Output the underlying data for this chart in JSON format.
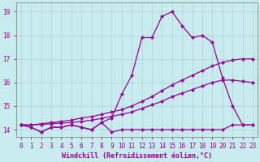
{
  "xlabel": "Windchill (Refroidissement éolien,°C)",
  "bg_color": "#c8eced",
  "line_color": "#990099",
  "grid_color": "#b0d8d8",
  "spine_color": "#888888",
  "xlim": [
    -0.5,
    23.5
  ],
  "ylim": [
    13.7,
    19.4
  ],
  "xticks": [
    0,
    1,
    2,
    3,
    4,
    5,
    6,
    7,
    8,
    9,
    10,
    11,
    12,
    13,
    14,
    15,
    16,
    17,
    18,
    19,
    20,
    21,
    22,
    23
  ],
  "yticks": [
    14,
    15,
    16,
    17,
    18,
    19
  ],
  "curve_flat_x": [
    0,
    1,
    2,
    3,
    4,
    5,
    6,
    7,
    8,
    9,
    10,
    11,
    12,
    13,
    14,
    15,
    16,
    17,
    18,
    19,
    20,
    21,
    22,
    23
  ],
  "curve_flat_y": [
    14.2,
    14.1,
    13.9,
    14.1,
    14.1,
    14.2,
    14.1,
    14.0,
    14.3,
    13.9,
    14.0,
    14.0,
    14.0,
    14.0,
    14.0,
    14.0,
    14.0,
    14.0,
    14.0,
    14.0,
    14.0,
    14.2,
    14.2,
    14.2
  ],
  "curve_main_x": [
    0,
    1,
    2,
    3,
    4,
    5,
    6,
    7,
    8,
    9,
    10,
    11,
    12,
    13,
    14,
    15,
    16,
    17,
    18,
    19,
    20,
    21,
    22,
    23
  ],
  "curve_main_y": [
    14.2,
    14.1,
    13.9,
    14.1,
    14.1,
    14.2,
    14.1,
    14.0,
    14.3,
    14.5,
    15.5,
    16.3,
    17.9,
    17.9,
    18.8,
    19.0,
    18.4,
    17.9,
    18.0,
    17.7,
    16.2,
    15.0,
    14.2,
    14.2
  ],
  "curve_trend1_x": [
    0,
    1,
    2,
    3,
    4,
    5,
    6,
    7,
    8,
    9,
    10,
    11,
    12,
    13,
    14,
    15,
    16,
    17,
    18,
    19,
    20,
    21,
    22,
    23
  ],
  "curve_trend1_y": [
    14.2,
    14.2,
    14.25,
    14.3,
    14.35,
    14.4,
    14.5,
    14.55,
    14.65,
    14.75,
    14.85,
    15.0,
    15.2,
    15.4,
    15.65,
    15.9,
    16.1,
    16.3,
    16.5,
    16.7,
    16.85,
    16.95,
    17.0,
    17.0
  ],
  "curve_trend2_x": [
    0,
    1,
    2,
    3,
    4,
    5,
    6,
    7,
    8,
    9,
    10,
    11,
    12,
    13,
    14,
    15,
    16,
    17,
    18,
    19,
    20,
    21,
    22,
    23
  ],
  "curve_trend2_y": [
    14.2,
    14.2,
    14.22,
    14.25,
    14.28,
    14.3,
    14.35,
    14.4,
    14.48,
    14.56,
    14.65,
    14.75,
    14.9,
    15.05,
    15.2,
    15.4,
    15.55,
    15.7,
    15.85,
    16.0,
    16.1,
    16.1,
    16.05,
    16.0
  ],
  "marker": "D",
  "markersize": 2.5,
  "linewidth": 0.9,
  "xlabel_fontsize": 6.0,
  "tick_fontsize": 5.5
}
